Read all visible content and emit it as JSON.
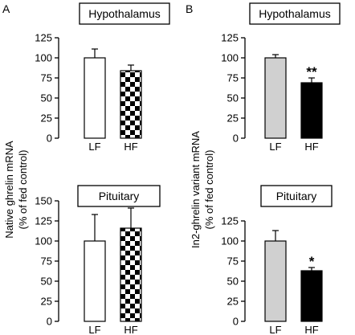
{
  "panel_letters": {
    "A": "A",
    "B": "B"
  },
  "ylabels": {
    "A": [
      "Native ghrelin mRNA",
      "(% of fed control)"
    ],
    "B": [
      "In2-ghrelin variant mRNA",
      "(% of fed control)"
    ]
  },
  "chart_data": [
    {
      "id": "A-top",
      "type": "bar",
      "title": "Hypothalamus",
      "categories": [
        "LF",
        "HF"
      ],
      "values": [
        100,
        84
      ],
      "errors": [
        11,
        7
      ],
      "ylim": [
        0,
        125
      ],
      "yticks": [
        "0",
        "25",
        "50",
        "75",
        "100",
        "125"
      ],
      "fills": [
        "white",
        "checker"
      ],
      "annotations": [
        "",
        ""
      ]
    },
    {
      "id": "A-bottom",
      "type": "bar",
      "title": "Pituitary",
      "categories": [
        "LF",
        "HF"
      ],
      "values": [
        100,
        116
      ],
      "errors": [
        33,
        25
      ],
      "ylim": [
        0,
        150
      ],
      "yticks": [
        "0",
        "25",
        "50",
        "75",
        "100",
        "125",
        "150"
      ],
      "fills": [
        "white",
        "checker"
      ],
      "annotations": [
        "",
        ""
      ]
    },
    {
      "id": "B-top",
      "type": "bar",
      "title": "Hypothalamus",
      "categories": [
        "LF",
        "HF"
      ],
      "values": [
        100,
        69
      ],
      "errors": [
        4,
        6
      ],
      "ylim": [
        0,
        125
      ],
      "yticks": [
        "0",
        "25",
        "50",
        "75",
        "100",
        "125"
      ],
      "fills": [
        "#d0d0d0",
        "#000000"
      ],
      "annotations": [
        "",
        "**"
      ]
    },
    {
      "id": "B-bottom",
      "type": "bar",
      "title": "Pituitary",
      "categories": [
        "LF",
        "HF"
      ],
      "values": [
        100,
        63
      ],
      "errors": [
        13,
        4
      ],
      "ylim": [
        0,
        125
      ],
      "yticks": [
        "0",
        "25",
        "50",
        "75",
        "100",
        "125"
      ],
      "fills": [
        "#d0d0d0",
        "#000000"
      ],
      "annotations": [
        "",
        "*"
      ]
    }
  ]
}
